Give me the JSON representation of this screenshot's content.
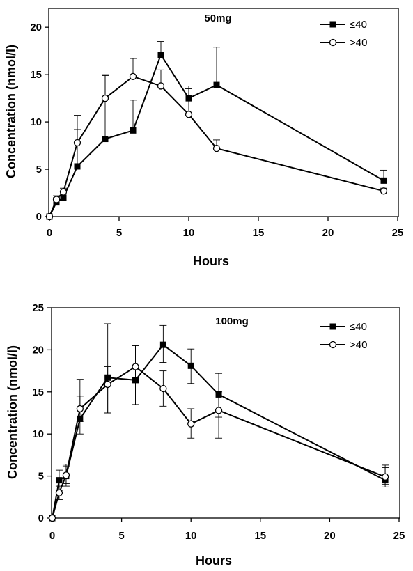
{
  "chart_data": [
    {
      "type": "line",
      "title": "50mg",
      "xlabel": "Hours",
      "ylabel": "Concentration (nmol/l)",
      "xlim": [
        0,
        25
      ],
      "ylim": [
        0,
        22
      ],
      "xticks": [
        0,
        5,
        10,
        15,
        20,
        25
      ],
      "yticks": [
        0,
        5,
        10,
        15,
        20
      ],
      "grid": false,
      "legend_position": "top-right",
      "series": [
        {
          "name": "≤40",
          "marker": "filled-square",
          "x": [
            0,
            0.5,
            1,
            2,
            4,
            6,
            8,
            10,
            12,
            24
          ],
          "y": [
            0,
            1.5,
            2.0,
            5.3,
            8.2,
            9.1,
            17.1,
            12.5,
            13.9,
            3.8
          ],
          "error_upper": [
            0,
            2.0,
            2.7,
            9.2,
            14.9,
            12.3,
            18.5,
            13.8,
            17.9,
            4.9
          ]
        },
        {
          "name": ">40",
          "marker": "open-circle",
          "x": [
            0,
            0.5,
            1,
            2,
            4,
            6,
            8,
            10,
            12,
            24
          ],
          "y": [
            0,
            1.8,
            2.6,
            7.8,
            12.5,
            14.8,
            13.8,
            10.8,
            7.2,
            2.7
          ],
          "error_upper": [
            0,
            2.2,
            3.0,
            10.7,
            15.0,
            16.7,
            15.5,
            13.5,
            8.1,
            3.0
          ]
        }
      ]
    },
    {
      "type": "line",
      "title": "100mg",
      "xlabel": "Hours",
      "ylabel": "Concentration (nmol/l)",
      "xlim": [
        0,
        25
      ],
      "ylim": [
        0,
        25
      ],
      "xticks": [
        0,
        5,
        10,
        15,
        20,
        25
      ],
      "yticks": [
        0,
        5,
        10,
        15,
        20,
        25
      ],
      "grid": false,
      "legend_position": "top-right",
      "series": [
        {
          "name": "≤40",
          "marker": "filled-square",
          "x": [
            0,
            0.5,
            1,
            2,
            4,
            6,
            8,
            10,
            12,
            24
          ],
          "y": [
            0,
            4.5,
            5.0,
            11.8,
            16.7,
            16.4,
            20.6,
            18.1,
            14.7,
            4.5
          ],
          "error_upper": [
            0,
            5.7,
            6.2,
            16.5,
            23.1,
            20.5,
            22.9,
            20.1,
            17.2,
            6.3
          ],
          "error_lower": [
            0,
            3.3,
            3.8,
            10.0,
            12.5,
            13.5,
            18.5,
            16.0,
            12.0,
            3.7
          ]
        },
        {
          "name": ">40",
          "marker": "open-circle",
          "x": [
            0,
            0.5,
            1,
            2,
            4,
            6,
            8,
            10,
            12,
            24
          ],
          "y": [
            0,
            3.0,
            5.1,
            13.0,
            15.9,
            18.0,
            15.4,
            11.2,
            12.8,
            4.9
          ],
          "error_upper": [
            0,
            3.8,
            6.4,
            14.5,
            18.0,
            20.5,
            17.5,
            13.0,
            15.0,
            6.0
          ],
          "error_lower": [
            0,
            2.2,
            4.1,
            11.5,
            12.5,
            13.5,
            13.3,
            9.5,
            9.5,
            4.0
          ]
        }
      ]
    }
  ]
}
